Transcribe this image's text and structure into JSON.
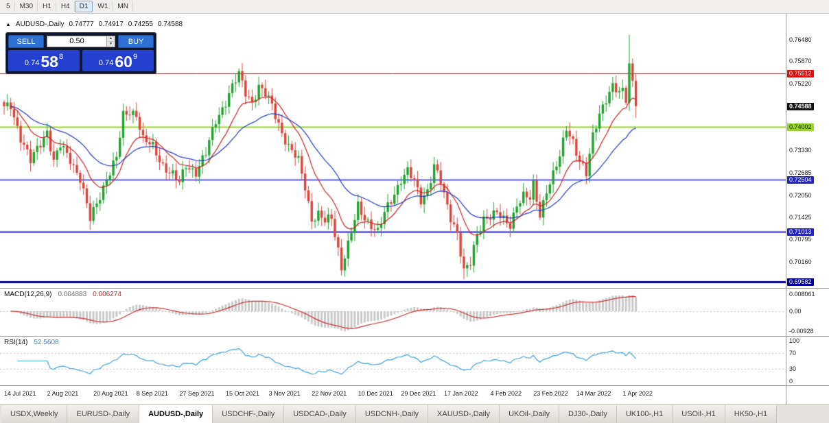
{
  "toolbar": {
    "timeframes": [
      "5",
      "M30",
      "H1",
      "H4",
      "D1",
      "W1",
      "MN"
    ],
    "active_timeframe": "D1"
  },
  "ohlc_header": {
    "marker": "▲",
    "symbol": "AUDUSD-,Daily",
    "open": "0.74777",
    "high": "0.74917",
    "low": "0.74255",
    "close": "0.74588"
  },
  "trade_widget": {
    "sell_label": "SELL",
    "buy_label": "BUY",
    "volume": "0.50",
    "spin_up": "▲",
    "spin_down": "▼",
    "sell_price": {
      "prefix": "0.74",
      "big": "58",
      "sup": "8"
    },
    "buy_price": {
      "prefix": "0.74",
      "big": "60",
      "sup": "9"
    }
  },
  "indicators": {
    "macd": {
      "label": "MACD(12,26,9)",
      "value_main": "0.004883",
      "value_signal": "0.006274",
      "axis": [
        {
          "text": "0.008061",
          "value": 0.008061
        },
        {
          "text": "0.00",
          "value": 0
        },
        {
          "text": "-0.00928",
          "value": -0.00928
        }
      ]
    },
    "rsi": {
      "label": "RSI(14)",
      "value": "52.5608",
      "axis": [
        {
          "text": "100",
          "value": 100
        },
        {
          "text": "70",
          "value": 70
        },
        {
          "text": "30",
          "value": 30
        },
        {
          "text": "0",
          "value": 0
        }
      ]
    }
  },
  "price_axis": {
    "ticks": [
      {
        "text": "0.76480",
        "value": 0.7648,
        "type": "plain"
      },
      {
        "text": "0.75870",
        "value": 0.7587,
        "type": "plain"
      },
      {
        "text": "0.75512",
        "value": 0.75512,
        "type": "level",
        "bg": "#dd1111",
        "fg": "#ffffff"
      },
      {
        "text": "0.75220",
        "value": 0.7522,
        "type": "plain"
      },
      {
        "text": "0.74588",
        "value": 0.74588,
        "type": "current",
        "bg": "#111111",
        "fg": "#ffffff"
      },
      {
        "text": "0.74002",
        "value": 0.74002,
        "type": "level",
        "bg": "#97d52c",
        "fg": "#0c2800"
      },
      {
        "text": "0.73330",
        "value": 0.7333,
        "type": "plain"
      },
      {
        "text": "0.72685",
        "value": 0.72685,
        "type": "plain"
      },
      {
        "text": "0.72504",
        "value": 0.72504,
        "type": "level",
        "bg": "#2424c8",
        "fg": "#ffffff"
      },
      {
        "text": "0.72050",
        "value": 0.7205,
        "type": "plain"
      },
      {
        "text": "0.71425",
        "value": 0.71425,
        "type": "plain"
      },
      {
        "text": "0.71013",
        "value": 0.71013,
        "type": "level",
        "bg": "#2424c8",
        "fg": "#ffffff"
      },
      {
        "text": "0.70795",
        "value": 0.70795,
        "type": "plain"
      },
      {
        "text": "0.70160",
        "value": 0.7016,
        "type": "plain"
      },
      {
        "text": "0.69582",
        "value": 0.69582,
        "type": "level",
        "bg": "#000090",
        "fg": "#ffffff"
      }
    ]
  },
  "date_axis": [
    {
      "label": "14 Jul 2021",
      "index": 0
    },
    {
      "label": "2 Aug 2021",
      "index": 13
    },
    {
      "label": "20 Aug 2021",
      "index": 27
    },
    {
      "label": "8 Sep 2021",
      "index": 40
    },
    {
      "label": "27 Sep 2021",
      "index": 53
    },
    {
      "label": "15 Oct 2021",
      "index": 67
    },
    {
      "label": "3 Nov 2021",
      "index": 80
    },
    {
      "label": "22 Nov 2021",
      "index": 93
    },
    {
      "label": "10 Dec 2021",
      "index": 107
    },
    {
      "label": "29 Dec 2021",
      "index": 120
    },
    {
      "label": "17 Jan 2022",
      "index": 133
    },
    {
      "label": "4 Feb 2022",
      "index": 147
    },
    {
      "label": "23 Feb 2022",
      "index": 160
    },
    {
      "label": "14 Mar 2022",
      "index": 173
    },
    {
      "label": "1 Apr 2022",
      "index": 187
    }
  ],
  "bottom_tabs": {
    "tabs": [
      "USDX,Weekly",
      "EURUSD-,Daily",
      "AUDUSD-,Daily",
      "USDCHF-,Daily",
      "USDCAD-,Daily",
      "USDCNH-,Daily",
      "XAUUSD-,Daily",
      "UKOil-,Daily",
      "DJ30-,Daily",
      "UK100-,H1",
      "USOil-,H1",
      "HK50-,H1"
    ],
    "active": "AUDUSD-,Daily"
  },
  "colors": {
    "candle_up": "#1fa32b",
    "candle_down": "#d9453a",
    "ma_fast": "#cc2020",
    "ma_slow": "#2038c8",
    "macd_hist": "#c9c9c9",
    "macd_signal": "#c43030",
    "rsi_line": "#3f9fd8",
    "dotted_level": "#bdbdbd"
  },
  "chart_data": {
    "type": "candlestick",
    "symbol": "AUDUSD-",
    "timeframe": "Daily",
    "x_range": [
      "14 Jul 2021",
      "8 Apr 2022"
    ],
    "candle_count": 192,
    "price_scale": {
      "max": 0.7722,
      "min": 0.6941
    },
    "levels": [
      {
        "value": 0.75512,
        "color": "#dd1111",
        "width": 1
      },
      {
        "value": 0.74002,
        "color": "#97d52c",
        "width": 2
      },
      {
        "value": 0.72504,
        "color": "#2424c8",
        "width": 1.5
      },
      {
        "value": 0.71013,
        "color": "#2424c8",
        "width": 2
      },
      {
        "value": 0.69582,
        "color": "#000090",
        "width": 3
      }
    ],
    "moving_averages": [
      {
        "name": "fast",
        "period": 12,
        "color": "#cc2020"
      },
      {
        "name": "slow",
        "period": 30,
        "color": "#2038c8"
      }
    ],
    "current": {
      "open": 0.74777,
      "high": 0.74917,
      "low": 0.74255,
      "close": 0.74588,
      "bid": 0.74588,
      "ask": 0.74609
    },
    "macd": {
      "params": [
        12,
        26,
        9
      ],
      "value_main": 0.004883,
      "value_signal": 0.006274,
      "scale_max": 0.0105,
      "scale_min": -0.0115
    },
    "rsi": {
      "period": 14,
      "value": 52.5608,
      "scale_max": 110,
      "scale_min": -10,
      "levels": [
        70,
        30
      ]
    },
    "close_keypoints": [
      [
        0,
        0.7452
      ],
      [
        2,
        0.7462
      ],
      [
        5,
        0.737
      ],
      [
        8,
        0.73
      ],
      [
        11,
        0.7355
      ],
      [
        13,
        0.739
      ],
      [
        15,
        0.73
      ],
      [
        17,
        0.7345
      ],
      [
        20,
        0.7308
      ],
      [
        23,
        0.7255
      ],
      [
        26,
        0.7135
      ],
      [
        28,
        0.718
      ],
      [
        31,
        0.7255
      ],
      [
        34,
        0.731
      ],
      [
        36,
        0.743
      ],
      [
        38,
        0.7445
      ],
      [
        40,
        0.7438
      ],
      [
        42,
        0.7362
      ],
      [
        45,
        0.7342
      ],
      [
        48,
        0.7292
      ],
      [
        51,
        0.7262
      ],
      [
        53,
        0.7238
      ],
      [
        55,
        0.7292
      ],
      [
        58,
        0.7272
      ],
      [
        61,
        0.7322
      ],
      [
        64,
        0.742
      ],
      [
        67,
        0.7472
      ],
      [
        69,
        0.7512
      ],
      [
        71,
        0.7548
      ],
      [
        73,
        0.75
      ],
      [
        75,
        0.7472
      ],
      [
        77,
        0.7512
      ],
      [
        79,
        0.749
      ],
      [
        81,
        0.7462
      ],
      [
        83,
        0.741
      ],
      [
        86,
        0.734
      ],
      [
        89,
        0.7302
      ],
      [
        91,
        0.7232
      ],
      [
        93,
        0.7138
      ],
      [
        95,
        0.7148
      ],
      [
        97,
        0.7128
      ],
      [
        99,
        0.7142
      ],
      [
        101,
        0.7052
      ],
      [
        102,
        0.7002
      ],
      [
        104,
        0.7062
      ],
      [
        106,
        0.7132
      ],
      [
        107,
        0.7172
      ],
      [
        109,
        0.7142
      ],
      [
        111,
        0.7122
      ],
      [
        113,
        0.7098
      ],
      [
        115,
        0.7152
      ],
      [
        118,
        0.7212
      ],
      [
        120,
        0.7252
      ],
      [
        122,
        0.7272
      ],
      [
        124,
        0.7242
      ],
      [
        126,
        0.7192
      ],
      [
        128,
        0.7222
      ],
      [
        130,
        0.7288
      ],
      [
        132,
        0.7242
      ],
      [
        133,
        0.7202
      ],
      [
        135,
        0.7142
      ],
      [
        137,
        0.7102
      ],
      [
        139,
        0.6988
      ],
      [
        141,
        0.7008
      ],
      [
        143,
        0.7092
      ],
      [
        145,
        0.7142
      ],
      [
        147,
        0.7148
      ],
      [
        149,
        0.7152
      ],
      [
        151,
        0.7132
      ],
      [
        153,
        0.7122
      ],
      [
        155,
        0.7182
      ],
      [
        157,
        0.7202
      ],
      [
        159,
        0.7192
      ],
      [
        160,
        0.7232
      ],
      [
        162,
        0.7152
      ],
      [
        164,
        0.7222
      ],
      [
        166,
        0.7262
      ],
      [
        168,
        0.7312
      ],
      [
        170,
        0.7398
      ],
      [
        172,
        0.7362
      ],
      [
        174,
        0.7302
      ],
      [
        176,
        0.7262
      ],
      [
        178,
        0.7372
      ],
      [
        180,
        0.7442
      ],
      [
        182,
        0.7482
      ],
      [
        184,
        0.7512
      ],
      [
        186,
        0.7492
      ],
      [
        187,
        0.7502
      ],
      [
        188,
        0.7482
      ],
      [
        189,
        0.7582
      ],
      [
        190,
        0.7532
      ],
      [
        191,
        0.74588
      ]
    ],
    "wick_overrides": {
      "26": {
        "low": 0.7106
      },
      "71": {
        "high": 0.7556
      },
      "102": {
        "low": 0.6994
      },
      "139": {
        "low": 0.6966
      },
      "189": {
        "high": 0.7662
      },
      "191": {
        "low": 0.74255
      }
    }
  }
}
